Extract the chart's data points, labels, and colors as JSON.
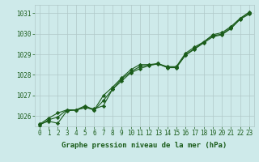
{
  "title": "Graphe pression niveau de la mer (hPa)",
  "bg_color": "#ceeaea",
  "grid_color": "#b0c8c8",
  "line_color": "#1a5c1a",
  "xlim_min": -0.5,
  "xlim_max": 23.5,
  "ylim_min": 1025.5,
  "ylim_max": 1031.4,
  "yticks": [
    1026,
    1027,
    1028,
    1029,
    1030,
    1031
  ],
  "xticks": [
    0,
    1,
    2,
    3,
    4,
    5,
    6,
    7,
    8,
    9,
    10,
    11,
    12,
    13,
    14,
    15,
    16,
    17,
    18,
    19,
    20,
    21,
    22,
    23
  ],
  "series1": [
    1025.6,
    1025.75,
    1025.65,
    1026.25,
    1026.3,
    1026.4,
    1026.35,
    1026.5,
    1027.3,
    1027.7,
    1028.1,
    1028.3,
    1028.45,
    1028.55,
    1028.35,
    1028.35,
    1028.95,
    1029.25,
    1029.55,
    1029.85,
    1029.95,
    1030.25,
    1030.7,
    1030.95
  ],
  "series2": [
    1025.6,
    1025.9,
    1026.15,
    1026.3,
    1026.3,
    1026.5,
    1026.3,
    1027.0,
    1027.4,
    1027.85,
    1028.25,
    1028.5,
    1028.5,
    1028.55,
    1028.4,
    1028.4,
    1029.05,
    1029.35,
    1029.6,
    1029.95,
    1030.05,
    1030.35,
    1030.75,
    1031.05
  ],
  "series3": [
    1025.55,
    1025.82,
    1025.95,
    1026.3,
    1026.28,
    1026.45,
    1026.28,
    1026.75,
    1027.3,
    1027.8,
    1028.15,
    1028.4,
    1028.48,
    1028.52,
    1028.38,
    1028.38,
    1028.98,
    1029.28,
    1029.6,
    1029.9,
    1029.98,
    1030.3,
    1030.72,
    1031.02
  ],
  "marker": "D",
  "markersize": 2.2,
  "linewidth": 0.8,
  "tick_fontsize": 5.5,
  "xlabel_fontsize": 6.5
}
